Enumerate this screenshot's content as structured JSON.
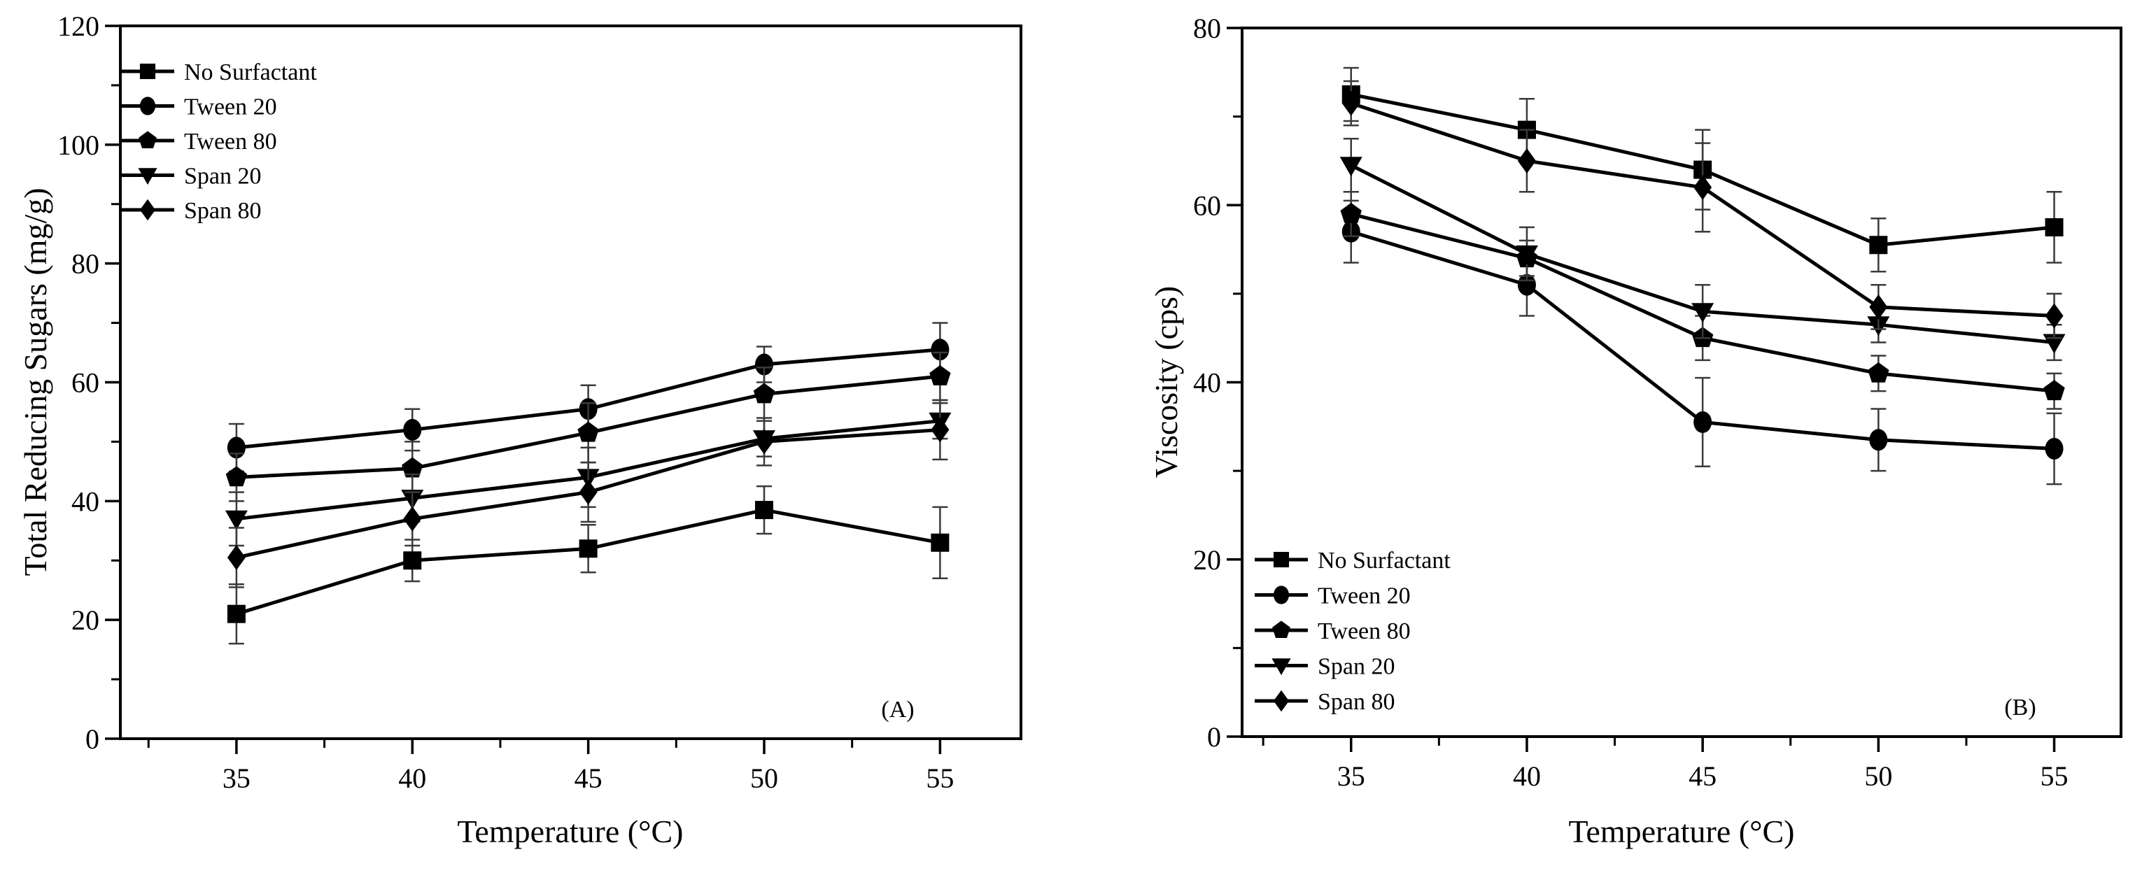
{
  "figure": {
    "background": "#ffffff",
    "ink_color": "#000000",
    "panel_a_label": "(A)",
    "panel_b_label": "(B)"
  },
  "chart_data": [
    {
      "type": "line",
      "panel_label": "(A)",
      "xlabel": "Temperature (°C)",
      "ylabel": "Total Reducing Sugars (mg/g)",
      "x": [
        35,
        40,
        45,
        50,
        55
      ],
      "xlim": [
        31.7,
        57.3
      ],
      "ylim": [
        0,
        120
      ],
      "xticks": [
        35,
        40,
        45,
        50,
        55
      ],
      "xticks_minor": [
        32.5,
        37.5,
        42.5,
        47.5,
        52.5
      ],
      "yticks": [
        0,
        20,
        40,
        60,
        80,
        100,
        120
      ],
      "yticks_minor": [
        10,
        30,
        50,
        70,
        90,
        110
      ],
      "grid": false,
      "legend_position": "top-left",
      "color": "#000000",
      "series": [
        {
          "name": "No Surfactant",
          "marker": "square",
          "values": [
            21,
            30,
            32,
            38.5,
            33
          ],
          "errors": [
            5,
            3.5,
            4,
            4,
            6
          ]
        },
        {
          "name": "Tween 20",
          "marker": "circle",
          "values": [
            49,
            52,
            55.5,
            63,
            65.5
          ],
          "errors": [
            4,
            3.5,
            4,
            3,
            4.5
          ]
        },
        {
          "name": "Tween 80",
          "marker": "pentagon",
          "values": [
            44,
            45.5,
            51.5,
            58,
            61
          ],
          "errors": [
            4,
            4.5,
            5,
            4.5,
            4
          ]
        },
        {
          "name": "Span 20",
          "marker": "triangle-down",
          "values": [
            37,
            40.5,
            44,
            50.5,
            53.5
          ],
          "errors": [
            4.5,
            4,
            5,
            3,
            3
          ]
        },
        {
          "name": "Span 80",
          "marker": "diamond",
          "values": [
            30.5,
            37,
            41.5,
            50,
            52
          ],
          "errors": [
            5,
            4.5,
            5,
            4,
            5
          ]
        }
      ]
    },
    {
      "type": "line",
      "panel_label": "(B)",
      "xlabel": "Temperature (°C)",
      "ylabel": "Viscosity (cps)",
      "x": [
        35,
        40,
        45,
        50,
        55
      ],
      "xlim": [
        31.9,
        56.9
      ],
      "ylim": [
        0,
        80
      ],
      "xticks": [
        35,
        40,
        45,
        50,
        55
      ],
      "xticks_minor": [
        32.5,
        37.5,
        42.5,
        47.5,
        52.5
      ],
      "yticks": [
        0,
        20,
        40,
        60,
        80
      ],
      "yticks_minor": [
        10,
        30,
        50,
        70
      ],
      "grid": false,
      "legend_position": "bottom-left",
      "color": "#000000",
      "series": [
        {
          "name": "No Surfactant",
          "marker": "square",
          "values": [
            72.5,
            68.5,
            64,
            55.5,
            57.5
          ],
          "errors": [
            3,
            3.5,
            4.5,
            3,
            4
          ]
        },
        {
          "name": "Tween 20",
          "marker": "circle",
          "values": [
            57,
            51,
            35.5,
            33.5,
            32.5
          ],
          "errors": [
            3.5,
            3.5,
            5,
            3.5,
            4
          ]
        },
        {
          "name": "Tween 80",
          "marker": "pentagon",
          "values": [
            59,
            54,
            45,
            41,
            39
          ],
          "errors": [
            2.5,
            2,
            2.5,
            2,
            2
          ]
        },
        {
          "name": "Span 20",
          "marker": "triangle-down",
          "values": [
            64.5,
            54.5,
            48,
            46.5,
            44.5
          ],
          "errors": [
            3,
            3,
            3,
            2,
            2
          ]
        },
        {
          "name": "Span 80",
          "marker": "diamond",
          "values": [
            71.5,
            65,
            62,
            48.5,
            47.5
          ],
          "errors": [
            2.5,
            3.5,
            5,
            2.5,
            2.5
          ]
        }
      ]
    }
  ]
}
